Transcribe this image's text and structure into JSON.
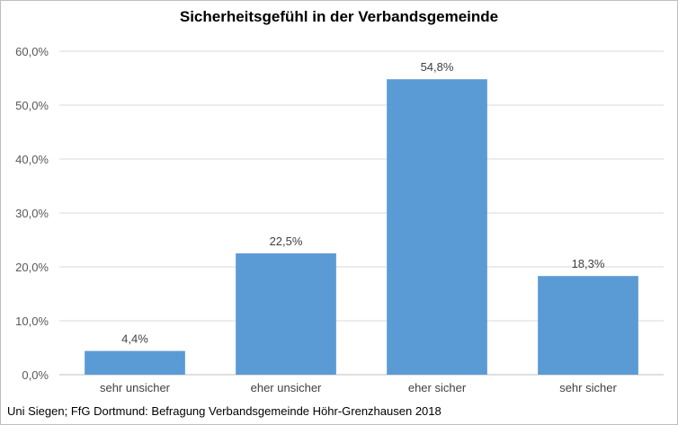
{
  "chart_data": {
    "type": "bar",
    "title": "Sicherheitsgefühl in der Verbandsgemeinde",
    "categories": [
      "sehr unsicher",
      "eher unsicher",
      "eher sicher",
      "sehr sicher"
    ],
    "values": [
      4.4,
      22.5,
      54.8,
      18.3
    ],
    "data_labels": [
      "4,4%",
      "22,5%",
      "54,8%",
      "18,3%"
    ],
    "yticks": [
      "0,0%",
      "10,0%",
      "20,0%",
      "30,0%",
      "40,0%",
      "50,0%",
      "60,0%"
    ],
    "ylim": [
      0,
      60
    ],
    "grid": true,
    "bar_color": "#5b9bd5",
    "source": "Uni Siegen; FfG Dortmund: Befragung Verbandsgemeinde Höhr-Grenzhausen 2018"
  }
}
